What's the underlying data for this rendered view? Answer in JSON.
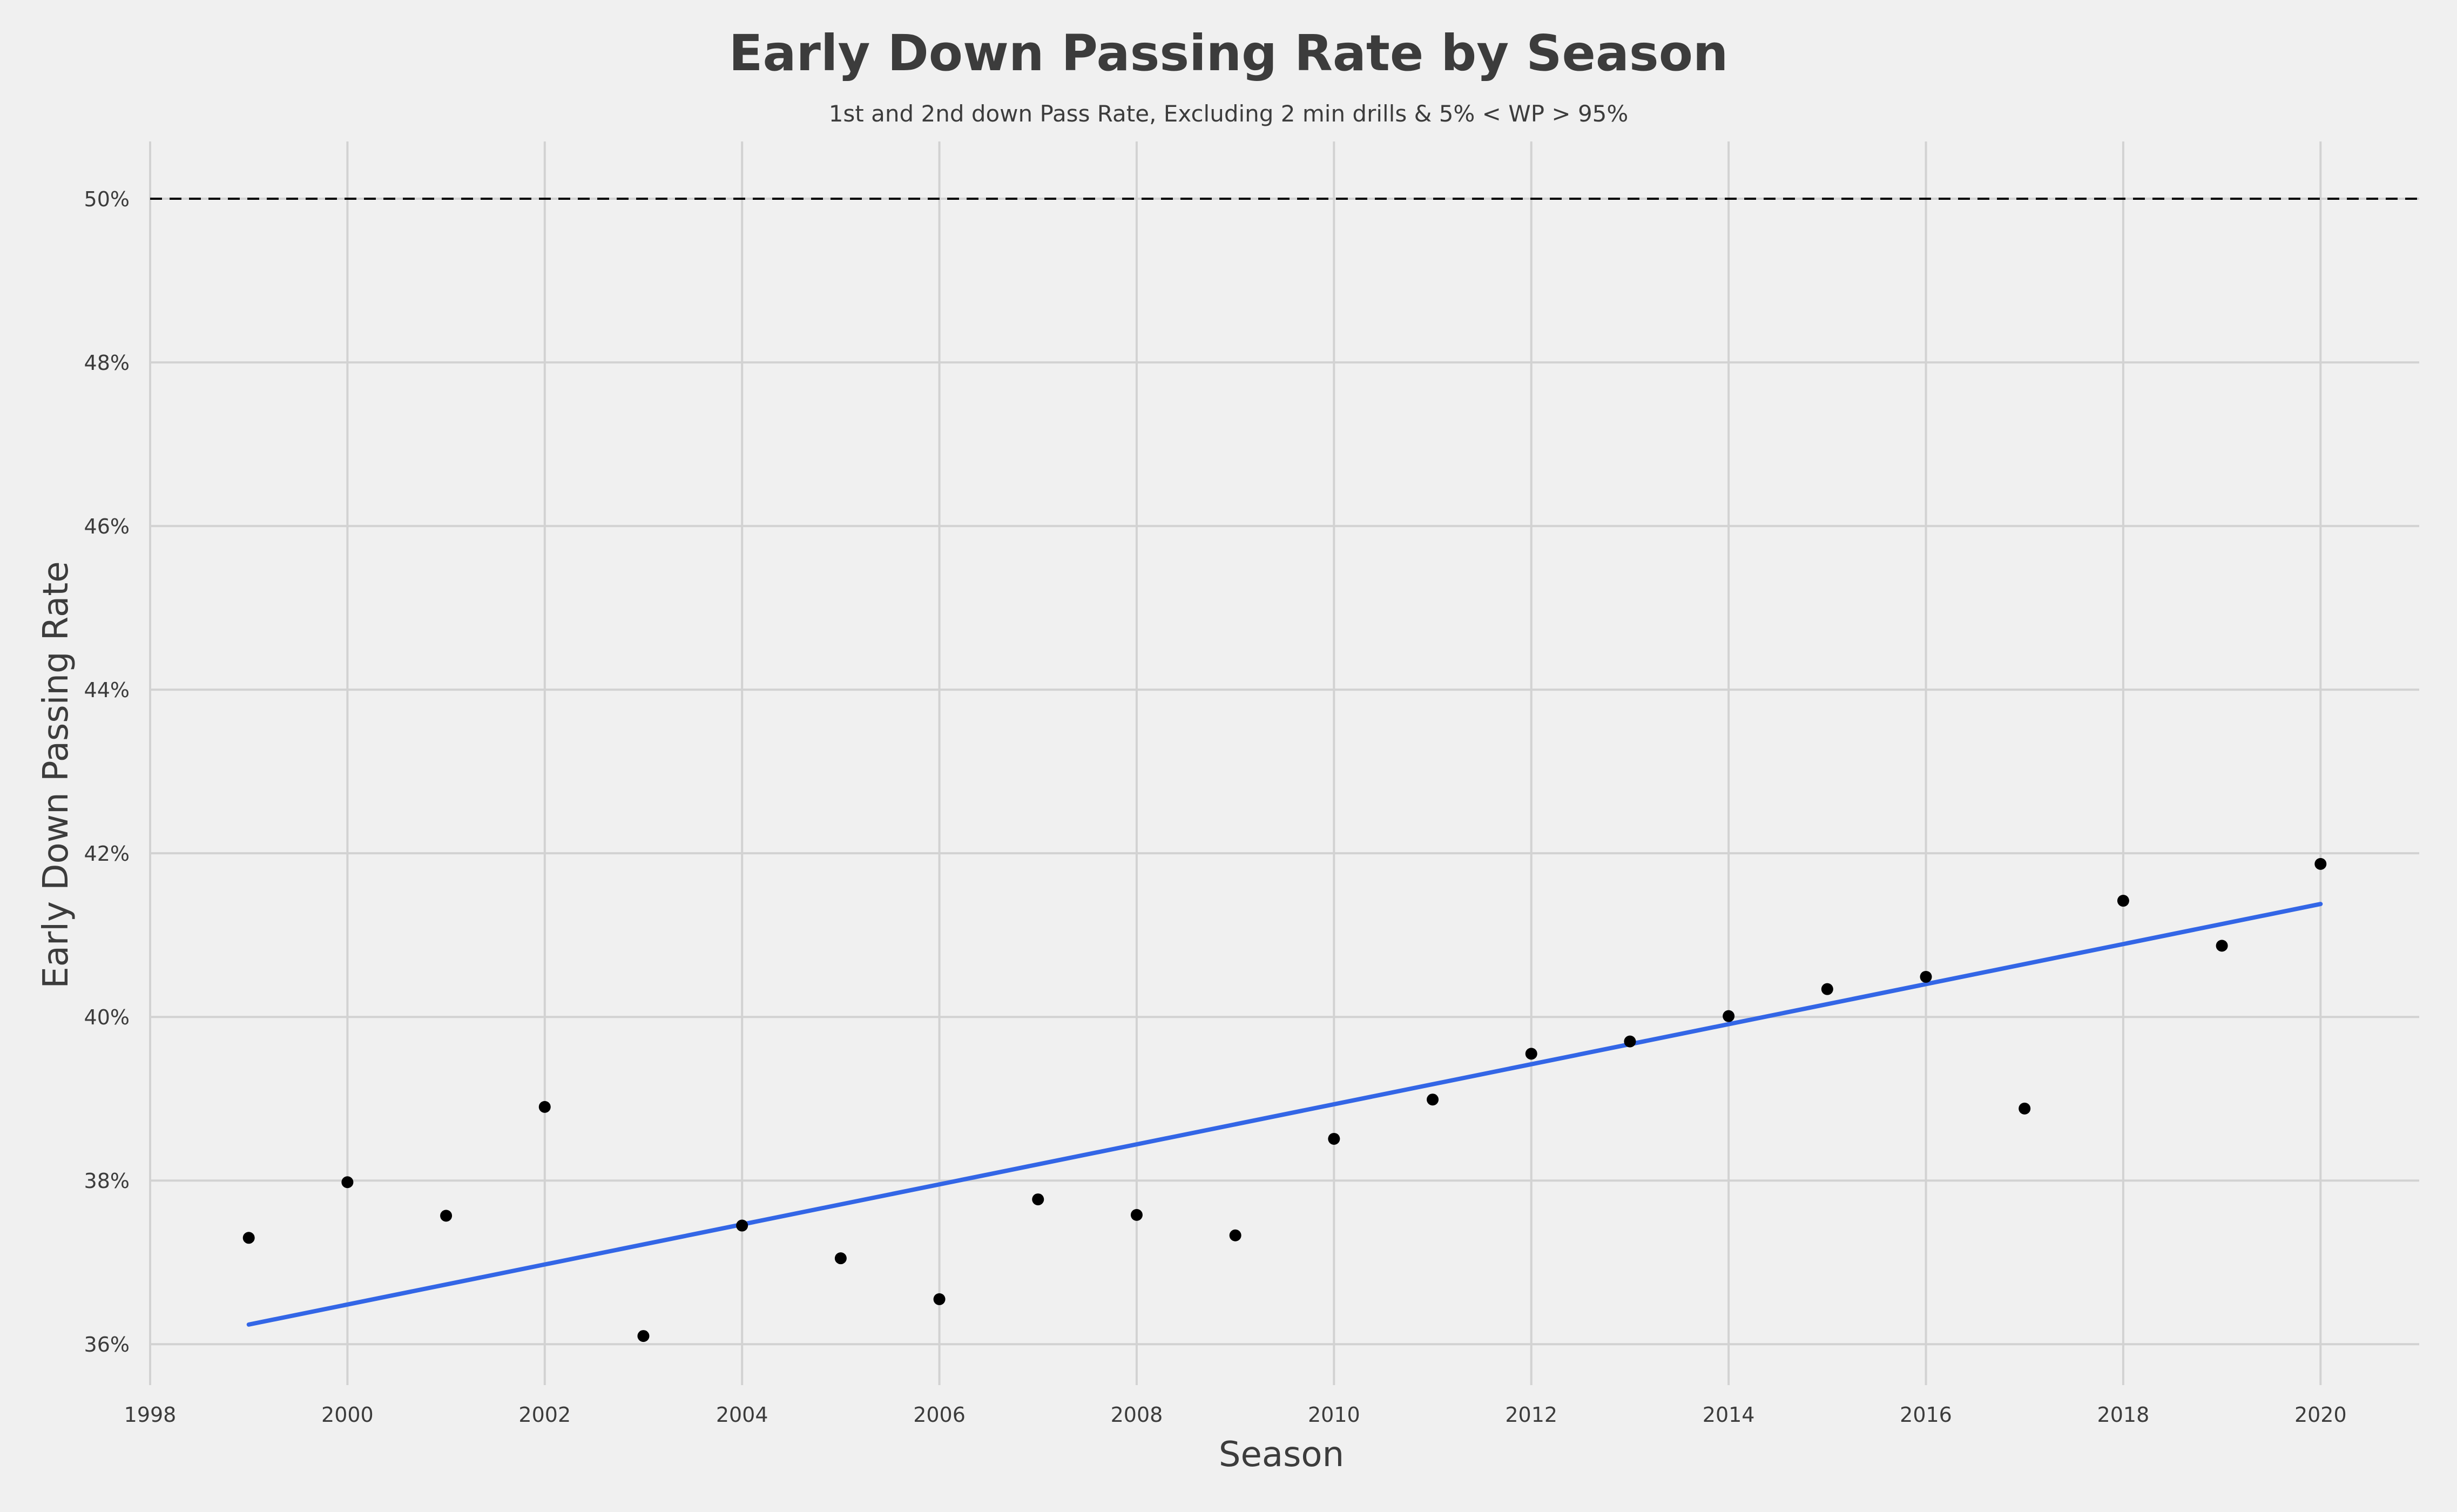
{
  "colors": {
    "background": "#f0f0f0",
    "grid": "#d2d2d2",
    "points": "#000000",
    "trend_line": "#3366e6",
    "reference_line": "#000000",
    "text": "#3c3c3c"
  },
  "chart_data": {
    "type": "scatter",
    "title": "Early Down Passing Rate by Season",
    "subtitle": "1st and 2nd down Pass Rate, Excluding 2 min drills & 5% < WP > 95%",
    "xlabel": "Season",
    "ylabel": "Early Down Passing Rate",
    "xlim": [
      1998,
      2021
    ],
    "ylim": [
      35.5,
      50.7
    ],
    "x_ticks": [
      1998,
      2000,
      2002,
      2004,
      2006,
      2008,
      2010,
      2012,
      2014,
      2016,
      2018,
      2020
    ],
    "y_ticks": [
      36,
      38,
      40,
      42,
      44,
      46,
      48,
      50
    ],
    "y_tick_labels": [
      "36%",
      "38%",
      "40%",
      "42%",
      "44%",
      "46%",
      "48%",
      "50%"
    ],
    "grid": true,
    "legend": "none",
    "series": [
      {
        "x": [
          1999,
          2000,
          2001,
          2002,
          2003,
          2004,
          2005,
          2006,
          2007,
          2008,
          2009,
          2010,
          2011,
          2012,
          2013,
          2014,
          2015,
          2016,
          2017,
          2018,
          2019,
          2020
        ],
        "y": [
          37.3,
          37.98,
          37.57,
          38.9,
          36.1,
          37.45,
          37.05,
          36.55,
          37.77,
          37.58,
          37.33,
          38.51,
          38.99,
          39.55,
          39.7,
          40.01,
          40.34,
          40.49,
          38.88,
          41.42,
          40.87,
          41.87
        ]
      }
    ],
    "trend_line": {
      "type": "linear",
      "x": [
        1999,
        2020
      ],
      "y": [
        36.24,
        41.38
      ]
    },
    "reference_line": {
      "y": 50,
      "style": "dashed"
    }
  }
}
